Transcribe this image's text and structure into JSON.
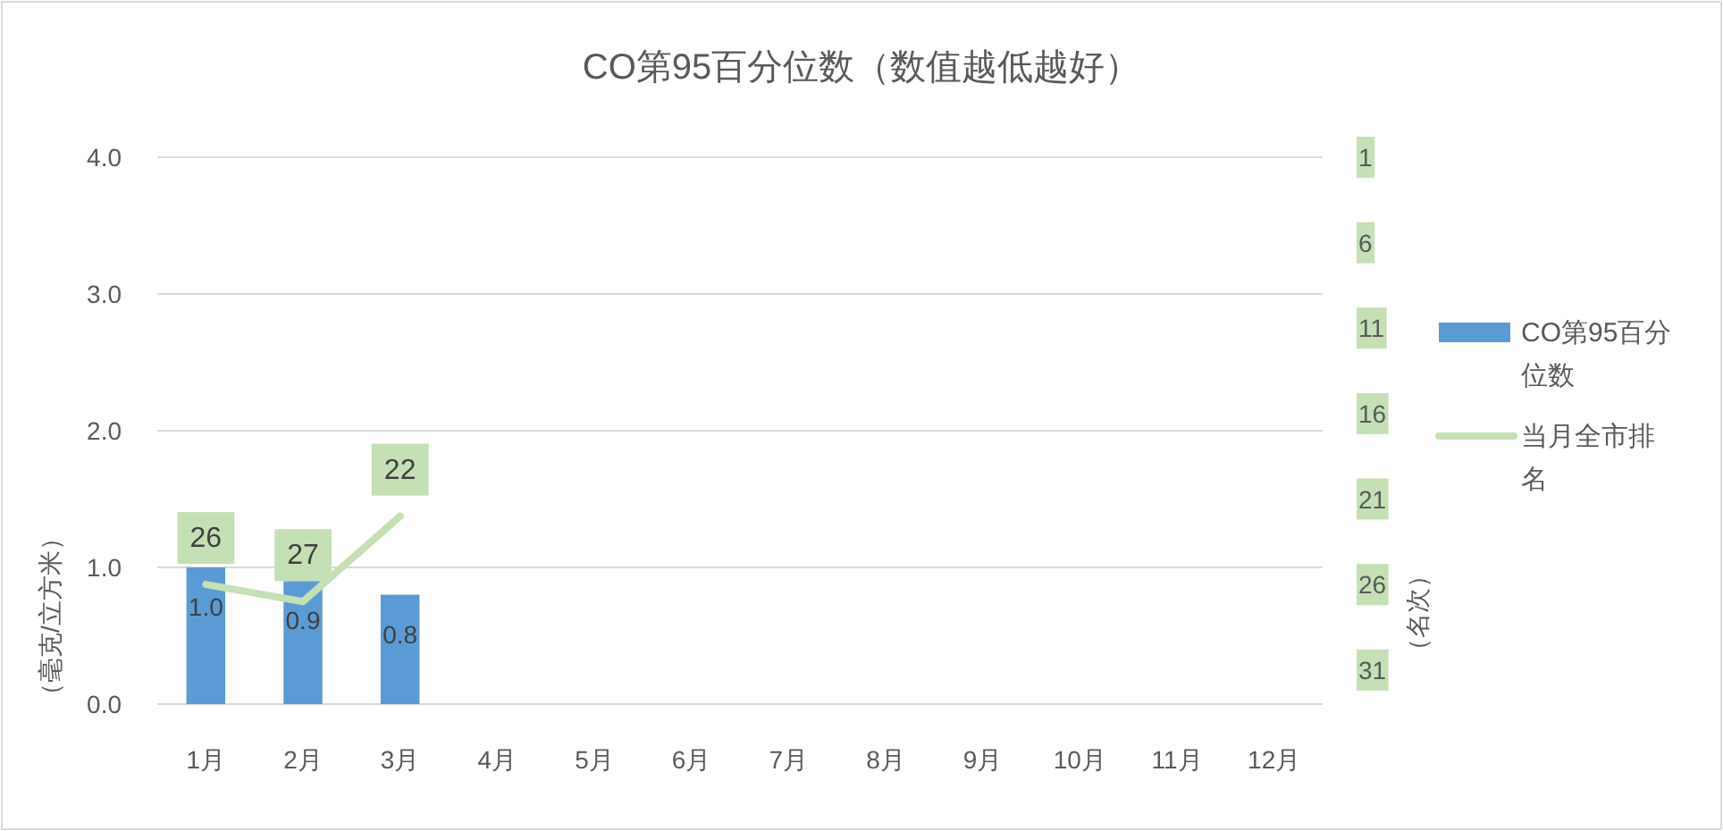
{
  "chart_data": {
    "type": "bar",
    "title": "CO第95百分位数（数值越低越好）",
    "ylabel": "（毫克/立方米）",
    "y2label": "（名次）",
    "categories": [
      "1月",
      "2月",
      "3月",
      "4月",
      "5月",
      "6月",
      "7月",
      "8月",
      "9月",
      "10月",
      "11月",
      "12月"
    ],
    "series": [
      {
        "name": "CO第95百分位数",
        "color": "#5b9bd5",
        "values": [
          1.0,
          0.9,
          0.8,
          null,
          null,
          null,
          null,
          null,
          null,
          null,
          null,
          null
        ],
        "value_labels": [
          "1.0",
          "0.9",
          "0.8",
          null,
          null,
          null,
          null,
          null,
          null,
          null,
          null,
          null
        ]
      },
      {
        "name": "当月全市排名",
        "type": "line",
        "axis": "y2",
        "color": "#c5e0b4",
        "values": [
          26,
          27,
          22,
          null,
          null,
          null,
          null,
          null,
          null,
          null,
          null,
          null
        ],
        "value_labels": [
          "26",
          "27",
          "22",
          null,
          null,
          null,
          null,
          null,
          null,
          null,
          null,
          null
        ]
      }
    ],
    "ylim": [
      0,
      4
    ],
    "yticks": [
      {
        "value": 0,
        "label": "0.0"
      },
      {
        "value": 1,
        "label": "1.0"
      },
      {
        "value": 2,
        "label": "2.0"
      },
      {
        "value": 3,
        "label": "3.0"
      },
      {
        "value": 4,
        "label": "4.0"
      }
    ],
    "y2lim": [
      33,
      1
    ],
    "y2ticks": [
      1,
      6,
      11,
      16,
      21,
      26,
      31
    ],
    "grid": "y",
    "legend": "right"
  }
}
